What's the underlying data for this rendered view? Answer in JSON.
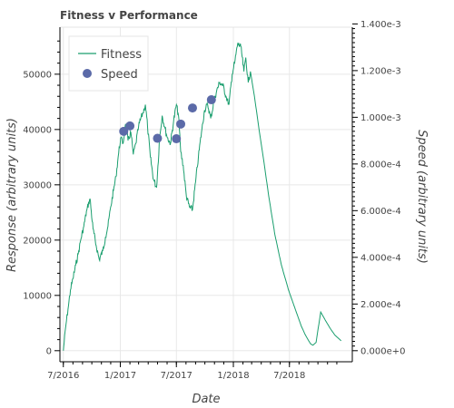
{
  "chart_data": {
    "type": "line",
    "title": "Fitness v Performance",
    "xlabel": "Date",
    "ylabel": "Response (arbitrary units)",
    "y2label": "Speed (arbitrary units)",
    "xlim": [
      "2016-06-20",
      "2019-01-20"
    ],
    "ylim": [
      -2000,
      58500
    ],
    "y2lim": [
      -4.74e-05,
      0.001386
    ],
    "x_ticks": [
      "2016-07-01",
      "2017-01-01",
      "2017-07-01",
      "2018-01-01",
      "2018-07-01"
    ],
    "x_tick_labels": [
      "7/2016",
      "1/2017",
      "7/2017",
      "1/2018",
      "7/2018"
    ],
    "y_ticks": [
      0,
      10000,
      20000,
      30000,
      40000,
      50000
    ],
    "y_tick_labels": [
      "0",
      "10000",
      "20000",
      "30000",
      "40000",
      "50000"
    ],
    "y2_ticks": [
      0,
      0.0002,
      0.0004,
      0.0006,
      0.0008,
      0.001,
      0.0012,
      0.0014
    ],
    "y2_tick_labels": [
      "0.000e+0",
      "2.000e-4",
      "4.000e-4",
      "6.000e-4",
      "8.000e-4",
      "1.000e-3",
      "1.200e-3",
      "1.400e-3"
    ],
    "grid": true,
    "legend_position": "top-left",
    "series": [
      {
        "name": "Fitness",
        "kind": "line",
        "axis": "left",
        "color": "#1a9e6e",
        "x": [
          "2016-07-01",
          "2016-07-08",
          "2016-07-16",
          "2016-07-24",
          "2016-08-01",
          "2016-08-10",
          "2016-08-18",
          "2016-08-26",
          "2016-09-05",
          "2016-09-15",
          "2016-09-25",
          "2016-10-05",
          "2016-10-15",
          "2016-10-25",
          "2016-11-05",
          "2016-11-14",
          "2016-11-22",
          "2016-12-01",
          "2016-12-10",
          "2016-12-18",
          "2016-12-25",
          "2017-01-02",
          "2017-01-10",
          "2017-01-18",
          "2017-01-26",
          "2017-02-04",
          "2017-02-12",
          "2017-02-20",
          "2017-03-01",
          "2017-03-08",
          "2017-03-15",
          "2017-03-23",
          "2017-03-30",
          "2017-04-08",
          "2017-04-18",
          "2017-04-28",
          "2017-05-08",
          "2017-05-16",
          "2017-05-24",
          "2017-06-02",
          "2017-06-12",
          "2017-06-22",
          "2017-07-01",
          "2017-07-08",
          "2017-07-15",
          "2017-07-23",
          "2017-08-02",
          "2017-08-12",
          "2017-08-22",
          "2017-09-01",
          "2017-09-10",
          "2017-09-20",
          "2017-09-30",
          "2017-10-10",
          "2017-10-20",
          "2017-10-30",
          "2017-11-08",
          "2017-11-18",
          "2017-11-28",
          "2017-12-08",
          "2017-12-18",
          "2017-12-28",
          "2018-01-05",
          "2018-01-15",
          "2018-01-25",
          "2018-02-04",
          "2018-02-10",
          "2018-02-18",
          "2018-02-25",
          "2018-03-10",
          "2018-03-25",
          "2018-04-10",
          "2018-04-25",
          "2018-05-15",
          "2018-06-05",
          "2018-06-28",
          "2018-07-20",
          "2018-08-08",
          "2018-08-20",
          "2018-09-01",
          "2018-09-08",
          "2018-09-15",
          "2018-09-25",
          "2018-10-10",
          "2018-10-25",
          "2018-11-10",
          "2018-11-25",
          "2018-12-15"
        ],
        "y": [
          0,
          4000,
          7500,
          11000,
          13000,
          15500,
          17500,
          20000,
          22500,
          25500,
          27500,
          22000,
          19000,
          16500,
          18000,
          20500,
          22500,
          26000,
          29000,
          31500,
          35000,
          38500,
          37500,
          41000,
          38000,
          39500,
          35500,
          37500,
          40500,
          42000,
          43000,
          44500,
          40500,
          35000,
          31000,
          29500,
          38500,
          42500,
          40500,
          38500,
          37500,
          41500,
          44500,
          42500,
          36000,
          33500,
          28000,
          26000,
          25500,
          30500,
          35000,
          39500,
          43500,
          44500,
          42000,
          45000,
          47000,
          48500,
          48000,
          46000,
          44500,
          50000,
          52000,
          55500,
          55000,
          50500,
          53000,
          48500,
          50500,
          46000,
          40000,
          34000,
          28000,
          21000,
          15500,
          11000,
          7500,
          4500,
          3000,
          1800,
          1200,
          1000,
          1500,
          7000,
          5500,
          4000,
          2800,
          1800
        ]
      },
      {
        "name": "Speed",
        "kind": "scatter",
        "axis": "right",
        "color": "#5b6aa8",
        "x": [
          "2017-01-12",
          "2017-02-01",
          "2017-05-01",
          "2017-07-01",
          "2017-07-15",
          "2017-08-22",
          "2017-10-22"
        ],
        "y": [
          0.00094,
          0.000963,
          0.00091,
          0.000908,
          0.000971,
          0.00104,
          0.001075
        ]
      }
    ]
  }
}
